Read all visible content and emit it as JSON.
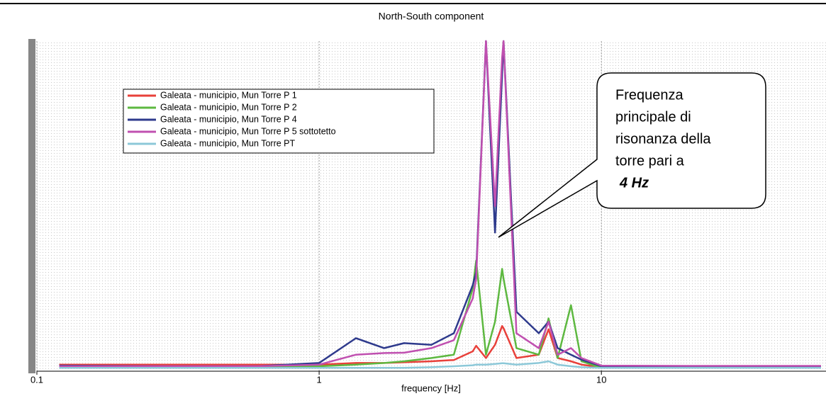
{
  "chart_data": {
    "type": "line",
    "title": "North-South component",
    "xlabel": "frequency [Hz]",
    "xscale": "log",
    "xlim": [
      0.1,
      60
    ],
    "xticks": [
      0.1,
      1,
      10
    ],
    "ylim": [
      0,
      100
    ],
    "grid": true,
    "x": [
      0.12,
      0.3,
      0.6,
      1,
      1.35,
      1.7,
      2,
      2.5,
      3,
      3.5,
      3.6,
      3.9,
      4.2,
      4.45,
      4.5,
      5,
      6,
      6.5,
      7,
      7.8,
      8.5,
      10,
      20,
      60
    ],
    "series": [
      {
        "name": "Galeata - municipio, Mun Torre P 1",
        "color": "#e8403a",
        "values": [
          2,
          2,
          2,
          2,
          2.5,
          2.5,
          2.7,
          3,
          3.4,
          6,
          7.7,
          4,
          8,
          13.7,
          13,
          4,
          5,
          12.7,
          4,
          3,
          2,
          1.2,
          1,
          1
        ]
      },
      {
        "name": "Galeata - municipio, Mun Torre P 2",
        "color": "#5db840",
        "values": [
          1,
          1,
          1.2,
          1.5,
          2,
          2.5,
          3,
          4,
          5,
          25,
          33.5,
          5,
          15,
          31,
          28,
          7,
          5,
          16,
          4,
          20,
          3,
          1,
          1,
          1
        ]
      },
      {
        "name": "Galeata - municipio, Mun Torre P 4",
        "color": "#2e3a8c",
        "values": [
          1.7,
          1.5,
          1.5,
          2.5,
          10,
          7,
          8.5,
          8,
          11.5,
          26,
          30,
          100,
          42,
          90,
          100,
          18,
          11.5,
          15,
          7,
          5,
          3.5,
          1.5,
          1.3,
          1.3
        ]
      },
      {
        "name": "Galeata - municipio, Mun Torre P 5 sottotetto",
        "color": "#c050b0",
        "values": [
          1.5,
          1.5,
          1.5,
          2,
          5,
          5.5,
          5.6,
          7,
          9.4,
          22,
          28,
          100,
          50,
          95,
          100,
          11.5,
          7,
          15,
          5,
          7,
          4,
          1.7,
          1.6,
          1.6
        ]
      },
      {
        "name": "Galeata - municipio, Mun Torre PT",
        "color": "#8cc8d8",
        "values": [
          1,
          1,
          1,
          1,
          1,
          1,
          1,
          1.2,
          1.5,
          1.8,
          2,
          2,
          2.2,
          2.4,
          2.4,
          2,
          2.5,
          3,
          2,
          1.5,
          1.2,
          1,
          1,
          1
        ]
      }
    ],
    "annotation": [
      "Frequenza",
      "principale di",
      "risonanza della",
      "torre pari a",
      "4 Hz"
    ]
  }
}
